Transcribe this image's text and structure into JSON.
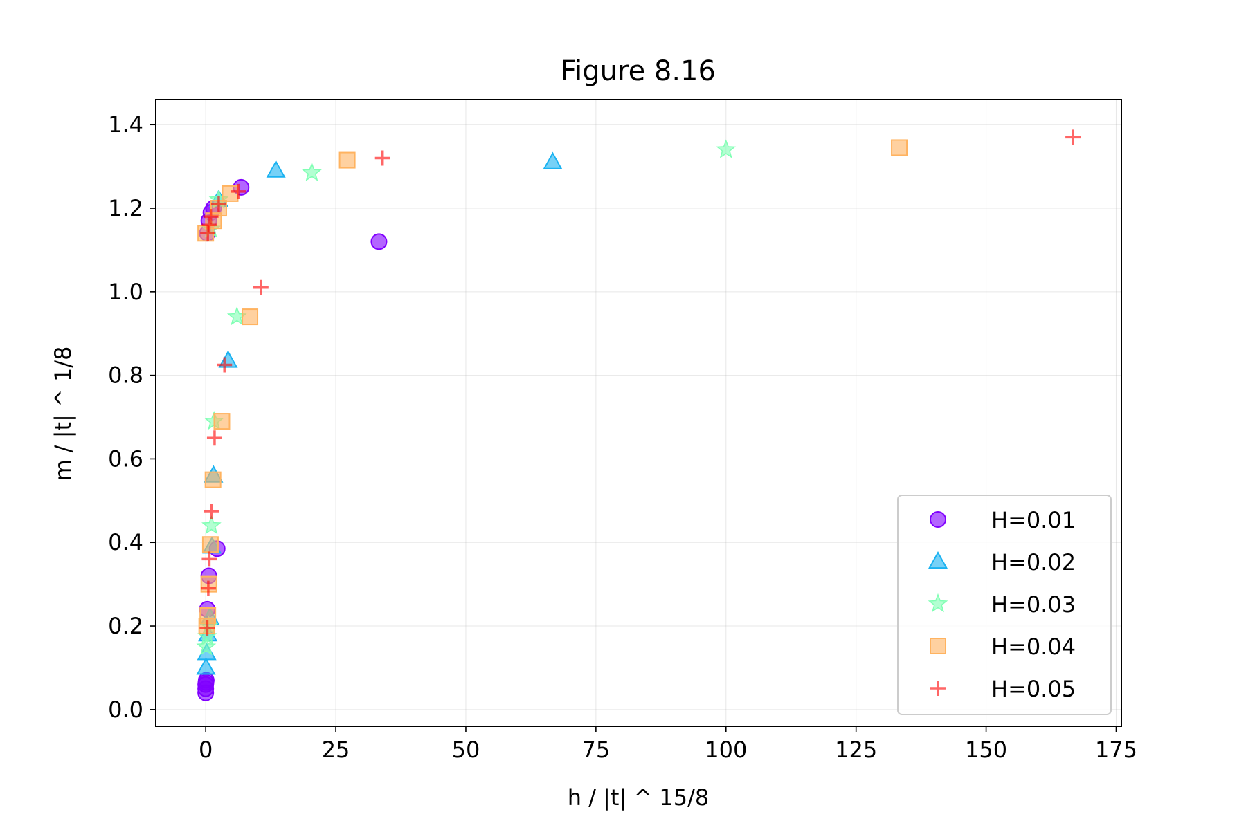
{
  "chart_data": {
    "type": "scatter",
    "title": "Figure 8.16",
    "xlabel": "h / |t| ^ 15/8",
    "ylabel": "m / |t| ^ 1/8",
    "xlim": [
      -9.6,
      176
    ],
    "ylim": [
      -0.04,
      1.46
    ],
    "xticks": [
      0,
      25,
      50,
      75,
      100,
      125,
      150,
      175
    ],
    "yticks": [
      0.0,
      0.2,
      0.4,
      0.6,
      0.8,
      1.0,
      1.2,
      1.4
    ],
    "xtick_labels": [
      "0",
      "25",
      "50",
      "75",
      "100",
      "125",
      "150",
      "175"
    ],
    "ytick_labels": [
      "0.0",
      "0.2",
      "0.4",
      "0.6",
      "0.8",
      "1.0",
      "1.2",
      "1.4"
    ],
    "grid": true,
    "legend_position": "lower-right",
    "series": [
      {
        "name": "H=0.01",
        "marker": "circle",
        "color": "#8000ff",
        "points": [
          [
            0.0,
            0.04
          ],
          [
            0.0,
            0.05
          ],
          [
            0.0,
            0.06
          ],
          [
            0.05,
            0.065
          ],
          [
            0.1,
            0.07
          ],
          [
            0.3,
            0.24
          ],
          [
            0.6,
            0.32
          ],
          [
            2.2,
            0.385
          ],
          [
            0.3,
            1.14
          ],
          [
            0.6,
            1.17
          ],
          [
            1.0,
            1.19
          ],
          [
            1.5,
            1.2
          ],
          [
            6.8,
            1.25
          ],
          [
            33.3,
            1.12
          ]
        ]
      },
      {
        "name": "H=0.02",
        "marker": "triangle",
        "color": "#1ab2f1",
        "points": [
          [
            0.05,
            0.1
          ],
          [
            0.2,
            0.135
          ],
          [
            0.4,
            0.18
          ],
          [
            0.8,
            0.22
          ],
          [
            1.2,
            0.39
          ],
          [
            1.5,
            0.56
          ],
          [
            4.3,
            0.835
          ],
          [
            2.5,
            1.22
          ],
          [
            13.5,
            1.29
          ],
          [
            66.7,
            1.31
          ]
        ]
      },
      {
        "name": "H=0.03",
        "marker": "star",
        "color": "#80ffb4",
        "points": [
          [
            0.1,
            0.15
          ],
          [
            0.3,
            0.175
          ],
          [
            0.6,
            0.2
          ],
          [
            1.1,
            0.44
          ],
          [
            1.6,
            0.69
          ],
          [
            6.0,
            0.94
          ],
          [
            1.0,
            1.15
          ],
          [
            2.5,
            1.22
          ],
          [
            20.4,
            1.285
          ],
          [
            100.0,
            1.34
          ]
        ]
      },
      {
        "name": "H=0.04",
        "marker": "square",
        "color": "#ffb360",
        "points": [
          [
            0.2,
            0.2
          ],
          [
            0.4,
            0.225
          ],
          [
            0.6,
            0.3
          ],
          [
            0.9,
            0.395
          ],
          [
            1.4,
            0.55
          ],
          [
            3.1,
            0.69
          ],
          [
            8.5,
            0.94
          ],
          [
            0.0,
            1.14
          ],
          [
            1.5,
            1.17
          ],
          [
            2.5,
            1.2
          ],
          [
            4.7,
            1.235
          ],
          [
            27.2,
            1.315
          ],
          [
            133.3,
            1.345
          ]
        ]
      },
      {
        "name": "H=0.05",
        "marker": "plus",
        "color": "#ff0000",
        "points": [
          [
            0.3,
            0.195
          ],
          [
            0.5,
            0.29
          ],
          [
            0.7,
            0.36
          ],
          [
            1.1,
            0.475
          ],
          [
            1.7,
            0.65
          ],
          [
            3.6,
            0.825
          ],
          [
            10.6,
            1.01
          ],
          [
            0.4,
            1.14
          ],
          [
            0.7,
            1.16
          ],
          [
            1.0,
            1.18
          ],
          [
            2.5,
            1.21
          ],
          [
            6.3,
            1.24
          ],
          [
            34.0,
            1.32
          ],
          [
            166.7,
            1.37
          ]
        ]
      }
    ]
  }
}
